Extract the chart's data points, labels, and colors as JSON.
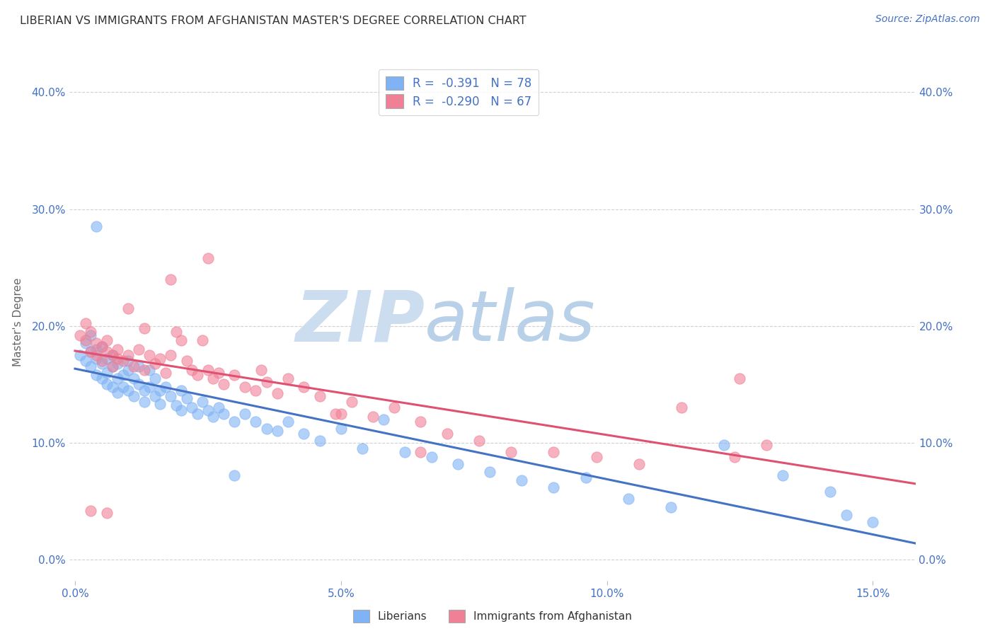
{
  "title": "LIBERIAN VS IMMIGRANTS FROM AFGHANISTAN MASTER'S DEGREE CORRELATION CHART",
  "source_text": "Source: ZipAtlas.com",
  "ylabel": "Master's Degree",
  "xlabel_ticks": [
    "0.0%",
    "5.0%",
    "10.0%",
    "15.0%"
  ],
  "xlabel_vals": [
    0.0,
    0.05,
    0.1,
    0.15
  ],
  "ylabel_ticks": [
    "0.0%",
    "10.0%",
    "20.0%",
    "30.0%",
    "40.0%"
  ],
  "ylabel_vals": [
    0.0,
    0.1,
    0.2,
    0.3,
    0.4
  ],
  "xlim": [
    -0.001,
    0.158
  ],
  "ylim": [
    -0.018,
    0.425
  ],
  "legend_labels": [
    "Liberians",
    "Immigrants from Afghanistan"
  ],
  "legend_R": [
    "R =  -0.391",
    "R =  -0.290"
  ],
  "legend_N": [
    "N = 78",
    "N = 67"
  ],
  "scatter_color_blue": "#7fb3f5",
  "scatter_color_pink": "#f08096",
  "line_color_blue": "#4472c4",
  "line_color_pink": "#e05070",
  "watermark_zip_color": "#c8d8ec",
  "watermark_atlas_color": "#a8c4e0",
  "background_color": "#ffffff",
  "grid_color": "#cccccc",
  "title_color": "#333333",
  "axis_label_color": "#4472c4",
  "blue_scatter_x": [
    0.001,
    0.002,
    0.002,
    0.003,
    0.003,
    0.003,
    0.004,
    0.004,
    0.004,
    0.005,
    0.005,
    0.005,
    0.006,
    0.006,
    0.006,
    0.007,
    0.007,
    0.007,
    0.008,
    0.008,
    0.008,
    0.009,
    0.009,
    0.01,
    0.01,
    0.01,
    0.011,
    0.011,
    0.012,
    0.012,
    0.013,
    0.013,
    0.014,
    0.014,
    0.015,
    0.015,
    0.016,
    0.016,
    0.017,
    0.018,
    0.019,
    0.02,
    0.02,
    0.021,
    0.022,
    0.023,
    0.024,
    0.025,
    0.026,
    0.027,
    0.028,
    0.03,
    0.032,
    0.034,
    0.036,
    0.038,
    0.04,
    0.043,
    0.046,
    0.05,
    0.054,
    0.058,
    0.062,
    0.067,
    0.072,
    0.078,
    0.084,
    0.09,
    0.096,
    0.104,
    0.112,
    0.122,
    0.133,
    0.142,
    0.145,
    0.15,
    0.004,
    0.03
  ],
  "blue_scatter_y": [
    0.175,
    0.185,
    0.17,
    0.178,
    0.165,
    0.192,
    0.172,
    0.158,
    0.18,
    0.168,
    0.155,
    0.182,
    0.16,
    0.15,
    0.172,
    0.165,
    0.148,
    0.175,
    0.155,
    0.143,
    0.168,
    0.158,
    0.148,
    0.162,
    0.145,
    0.17,
    0.155,
    0.14,
    0.15,
    0.165,
    0.145,
    0.135,
    0.148,
    0.162,
    0.14,
    0.155,
    0.145,
    0.133,
    0.148,
    0.14,
    0.132,
    0.145,
    0.128,
    0.138,
    0.13,
    0.125,
    0.135,
    0.128,
    0.122,
    0.13,
    0.125,
    0.118,
    0.125,
    0.118,
    0.112,
    0.11,
    0.118,
    0.108,
    0.102,
    0.112,
    0.095,
    0.12,
    0.092,
    0.088,
    0.082,
    0.075,
    0.068,
    0.062,
    0.07,
    0.052,
    0.045,
    0.098,
    0.072,
    0.058,
    0.038,
    0.032,
    0.285,
    0.072
  ],
  "pink_scatter_x": [
    0.001,
    0.002,
    0.002,
    0.003,
    0.003,
    0.004,
    0.004,
    0.005,
    0.005,
    0.006,
    0.006,
    0.007,
    0.007,
    0.008,
    0.008,
    0.009,
    0.01,
    0.011,
    0.012,
    0.013,
    0.014,
    0.015,
    0.016,
    0.017,
    0.018,
    0.019,
    0.02,
    0.021,
    0.022,
    0.023,
    0.024,
    0.025,
    0.026,
    0.027,
    0.028,
    0.03,
    0.032,
    0.034,
    0.036,
    0.038,
    0.04,
    0.043,
    0.046,
    0.049,
    0.052,
    0.056,
    0.06,
    0.065,
    0.07,
    0.076,
    0.082,
    0.09,
    0.098,
    0.106,
    0.114,
    0.124,
    0.003,
    0.006,
    0.01,
    0.013,
    0.018,
    0.025,
    0.035,
    0.05,
    0.065,
    0.125,
    0.13
  ],
  "pink_scatter_y": [
    0.192,
    0.188,
    0.202,
    0.178,
    0.195,
    0.185,
    0.175,
    0.182,
    0.17,
    0.188,
    0.178,
    0.175,
    0.165,
    0.18,
    0.172,
    0.17,
    0.175,
    0.165,
    0.18,
    0.162,
    0.175,
    0.168,
    0.172,
    0.16,
    0.175,
    0.195,
    0.188,
    0.17,
    0.162,
    0.158,
    0.188,
    0.162,
    0.155,
    0.16,
    0.15,
    0.158,
    0.148,
    0.145,
    0.152,
    0.142,
    0.155,
    0.148,
    0.14,
    0.125,
    0.135,
    0.122,
    0.13,
    0.118,
    0.108,
    0.102,
    0.092,
    0.092,
    0.088,
    0.082,
    0.13,
    0.088,
    0.042,
    0.04,
    0.215,
    0.198,
    0.24,
    0.258,
    0.162,
    0.125,
    0.092,
    0.155,
    0.098
  ]
}
